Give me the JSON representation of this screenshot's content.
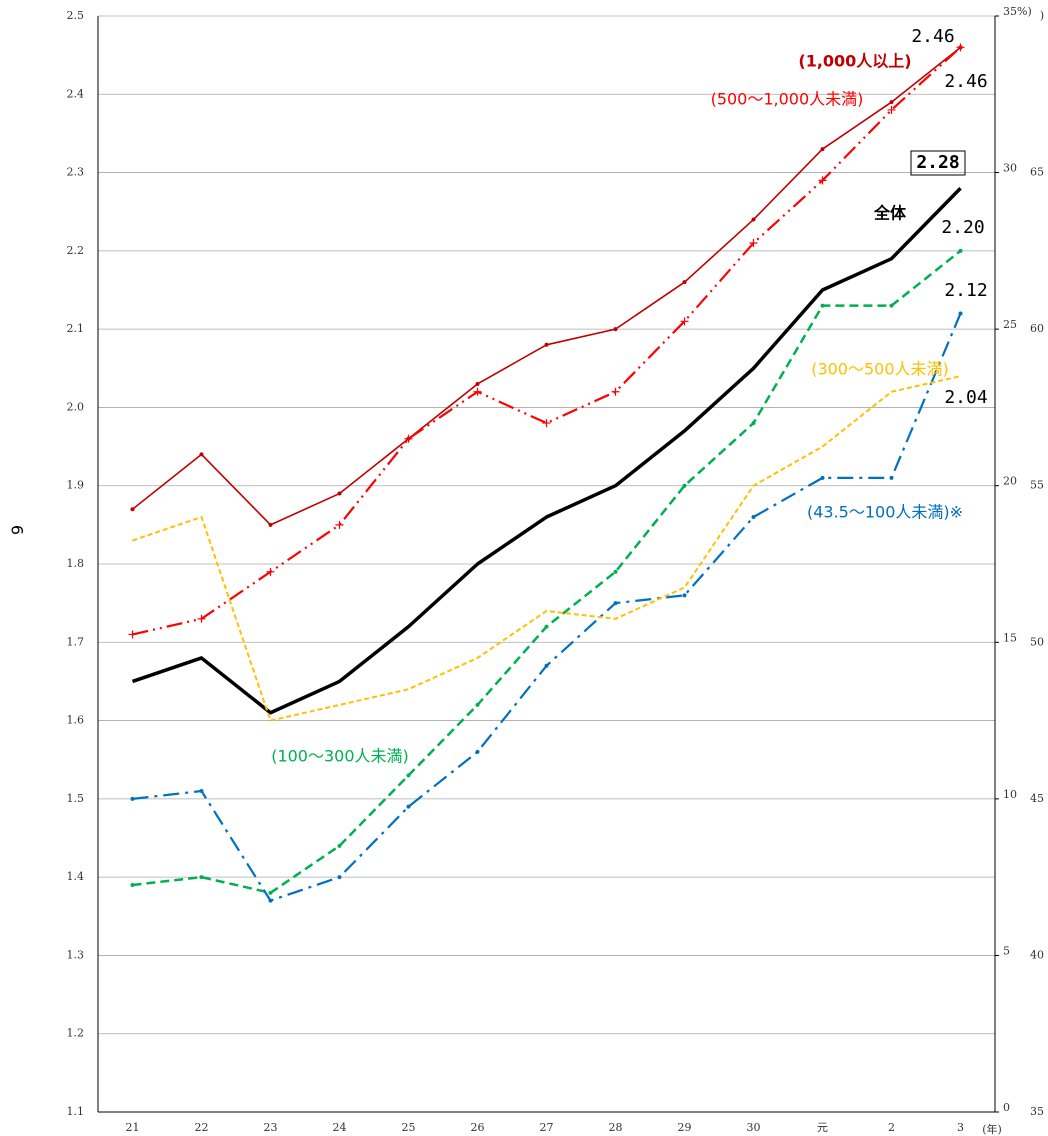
{
  "chart_data": {
    "type": "line",
    "y_label": "6",
    "x_label": "(年)",
    "categories": [
      "21",
      "22",
      "23",
      "24",
      "25",
      "26",
      "27",
      "28",
      "29",
      "30",
      "元",
      "2",
      "3"
    ],
    "ylim": [
      1.1,
      2.5
    ],
    "yticks": [
      1.1,
      1.2,
      1.3,
      1.4,
      1.5,
      1.6,
      1.7,
      1.8,
      1.9,
      {
        "value": 2,
        "label": "2.0"
      },
      2.1,
      2.2,
      2.3,
      2.4,
      2.5
    ],
    "y2lim": [
      0,
      35
    ],
    "y2ticks": [
      0,
      5,
      10,
      15,
      20,
      25,
      30,
      {
        "value": 35,
        "label": "35%)"
      }
    ],
    "y3lim": [
      35,
      70
    ],
    "y3ticks": [
      35,
      40,
      45,
      50,
      55,
      60,
      65
    ],
    "y3_label": ")",
    "grid": true,
    "series": [
      {
        "name": "(1,000人以上)",
        "color": "#c00000",
        "values": [
          1.87,
          1.94,
          1.85,
          1.89,
          1.96,
          2.03,
          2.08,
          2.1,
          2.16,
          2.24,
          2.33,
          2.39,
          2.46
        ],
        "end_label": "2.46"
      },
      {
        "name": "(500～1,000人未満)",
        "color": "#ff0000",
        "values": [
          1.71,
          1.73,
          1.79,
          1.85,
          1.96,
          2.02,
          1.98,
          2.02,
          2.11,
          2.21,
          2.29,
          2.38,
          2.46
        ],
        "end_label": "2.46"
      },
      {
        "name": "全体",
        "color": "#000000",
        "values": [
          1.65,
          1.68,
          1.61,
          1.65,
          1.72,
          1.8,
          1.86,
          1.9,
          1.97,
          2.05,
          2.15,
          2.19,
          2.28
        ],
        "end_label": "2.28"
      },
      {
        "name": "(100～300人未満)",
        "color": "#00b050",
        "values": [
          1.39,
          1.4,
          1.38,
          1.44,
          1.53,
          1.62,
          1.72,
          1.79,
          1.9,
          1.98,
          2.13,
          2.13,
          2.2
        ],
        "end_label": "2.20"
      },
      {
        "name": "(43.5～100人未満)※",
        "color": "#0070c0",
        "values": [
          1.5,
          1.51,
          1.37,
          1.4,
          1.49,
          1.56,
          1.67,
          1.75,
          1.76,
          1.86,
          1.91,
          1.91,
          2.12
        ],
        "end_label": "2.12"
      },
      {
        "name": "(300～500人未満)",
        "color": "#ffc000",
        "values": [
          1.83,
          1.86,
          1.6,
          1.62,
          1.64,
          1.68,
          1.74,
          1.73,
          1.77,
          1.9,
          1.95,
          2.02,
          2.04
        ],
        "end_label": "2.04"
      }
    ]
  }
}
